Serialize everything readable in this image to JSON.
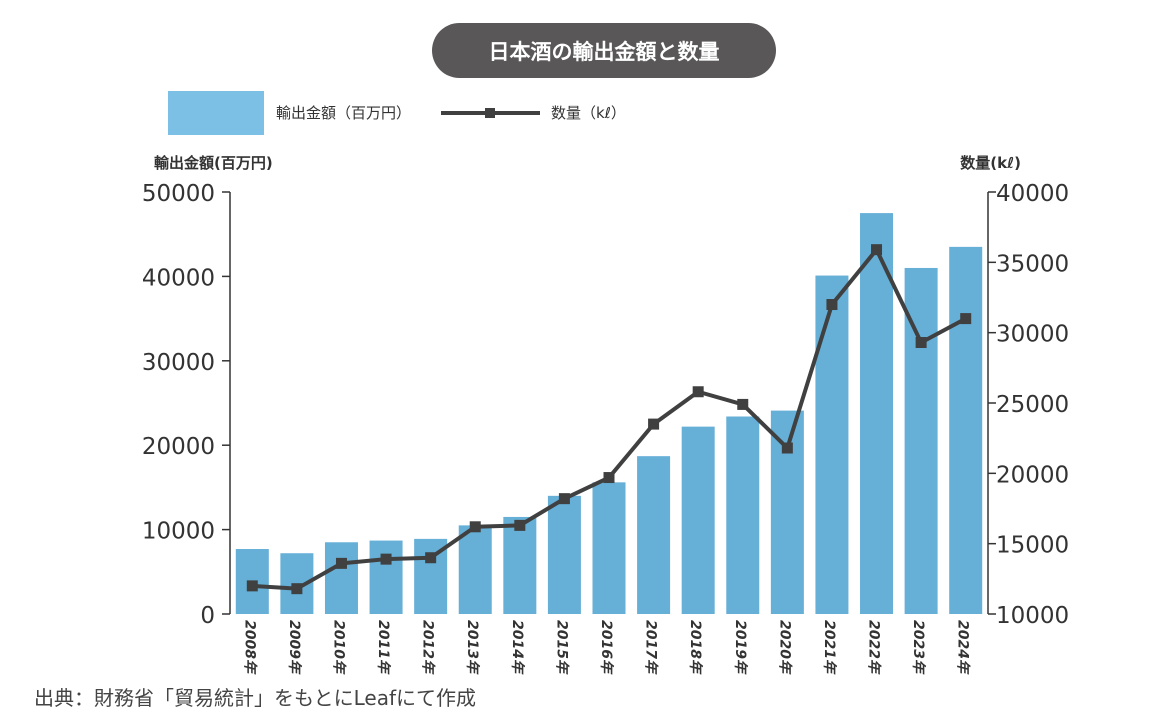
{
  "chart_data": {
    "type": "bar",
    "title": "日本酒の輸出金額と数量",
    "categories": [
      "2008年",
      "2009年",
      "2010年",
      "2011年",
      "2012年",
      "2013年",
      "2014年",
      "2015年",
      "2016年",
      "2017年",
      "2018年",
      "2019年",
      "2020年",
      "2021年",
      "2022年",
      "2023年",
      "2024年"
    ],
    "series": [
      {
        "name": "輸出金額（百万円）",
        "type": "bar",
        "axis": "left",
        "values": [
          7700,
          7200,
          8500,
          8700,
          8900,
          10500,
          11500,
          14000,
          15600,
          18700,
          22200,
          23400,
          24100,
          40100,
          47500,
          41000,
          43500
        ]
      },
      {
        "name": "数量（kℓ）",
        "type": "line",
        "axis": "right",
        "values": [
          12000,
          11800,
          13600,
          13900,
          14000,
          16200,
          16300,
          18200,
          19700,
          23500,
          25800,
          24900,
          21800,
          32000,
          35900,
          29300,
          31000
        ]
      }
    ],
    "ylabel_left": "輸出金額(百万円)",
    "ylabel_right": "数量(kℓ)",
    "ylim_left": [
      0,
      50000
    ],
    "ylim_right": [
      10000,
      40000
    ],
    "yticks_left": [
      "0",
      "10000",
      "20000",
      "30000",
      "40000",
      "50000"
    ],
    "yticks_right": [
      "10000",
      "15000",
      "20000",
      "25000",
      "30000",
      "35000",
      "40000"
    ],
    "grid": false,
    "legend_position": "top-left",
    "colors": {
      "bar": "#66afd7",
      "bar_legend": "#7cc0e6",
      "line": "#404040",
      "title_bg": "#595757",
      "title_text": "#ffffff"
    }
  },
  "source": "出典：財務省「貿易統計」をもとにLeafにて作成"
}
